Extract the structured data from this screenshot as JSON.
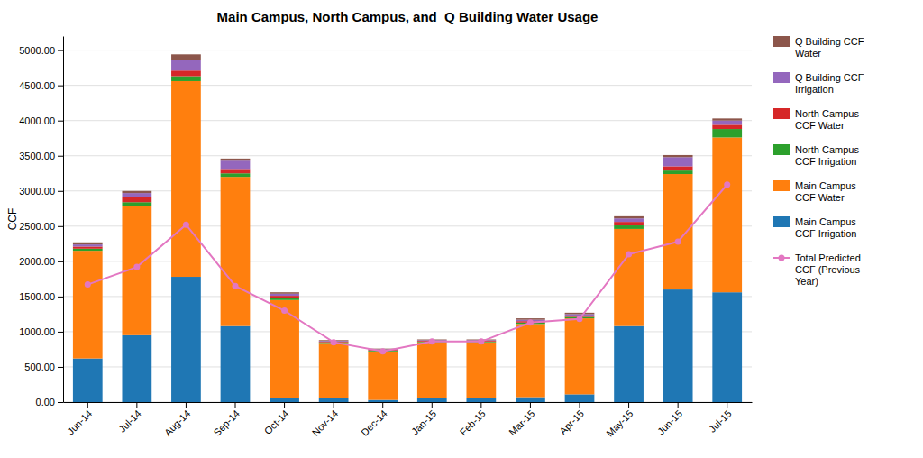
{
  "chart_data": {
    "type": "bar",
    "title": "Main Campus, North Campus, and  Q Building Water Usage",
    "ylabel": "CCF",
    "stacked": true,
    "grid": true,
    "legend": "right",
    "categories": [
      "Jun-14",
      "Jul-14",
      "Aug-14",
      "Sep-14",
      "Oct-14",
      "Nov-14",
      "Dec-14",
      "Jan-15",
      "Feb-15",
      "Mar-15",
      "Apr-15",
      "May-15",
      "Jun-15",
      "Jul-15"
    ],
    "series": [
      {
        "name": "Main Campus\nCCF Irrigation",
        "type": "bar",
        "values": [
          620,
          950,
          1780,
          1080,
          60,
          60,
          30,
          60,
          60,
          70,
          110,
          1080,
          1600,
          1560
        ]
      },
      {
        "name": "Main Campus\nCCF Water",
        "type": "bar",
        "values": [
          1530,
          1840,
          2780,
          2120,
          1390,
          780,
          690,
          790,
          790,
          1040,
          1080,
          1380,
          1640,
          2200
        ]
      },
      {
        "name": "North Campus\nCCF Irrigation",
        "type": "bar",
        "values": [
          30,
          50,
          70,
          50,
          30,
          10,
          10,
          10,
          10,
          20,
          20,
          50,
          50,
          120
        ]
      },
      {
        "name": "North Campus\nCCF Water",
        "type": "bar",
        "values": [
          30,
          80,
          80,
          50,
          30,
          10,
          10,
          10,
          10,
          20,
          20,
          50,
          60,
          60
        ]
      },
      {
        "name": "Q Building CCF\nIrrigation",
        "type": "bar",
        "values": [
          30,
          50,
          150,
          130,
          30,
          10,
          10,
          10,
          10,
          20,
          20,
          50,
          130,
          60
        ]
      },
      {
        "name": "Q Building CCF\nWater",
        "type": "bar",
        "values": [
          30,
          30,
          80,
          30,
          20,
          10,
          10,
          10,
          10,
          20,
          20,
          30,
          30,
          30
        ]
      },
      {
        "name": "Total Predicted\nCCF (Previous\nYear)",
        "type": "line",
        "marker": "circle",
        "values": [
          1670,
          1920,
          2520,
          1650,
          1300,
          850,
          720,
          860,
          860,
          1130,
          1180,
          2100,
          2280,
          3090
        ]
      }
    ],
    "ylim": [
      0,
      5200
    ],
    "yticks": [
      {
        "value": 0,
        "label": "0.00"
      },
      {
        "value": 500,
        "label": "500.00"
      },
      {
        "value": 1000,
        "label": "1000.00"
      },
      {
        "value": 1500,
        "label": "1500.00"
      },
      {
        "value": 2000,
        "label": "2000.00"
      },
      {
        "value": 2500,
        "label": "2500.00"
      },
      {
        "value": 3000,
        "label": "3000.00"
      },
      {
        "value": 3500,
        "label": "3500.00"
      },
      {
        "value": 4000,
        "label": "4000.00"
      },
      {
        "value": 4500,
        "label": "4500.00"
      },
      {
        "value": 5000,
        "label": "5000.00"
      }
    ]
  }
}
